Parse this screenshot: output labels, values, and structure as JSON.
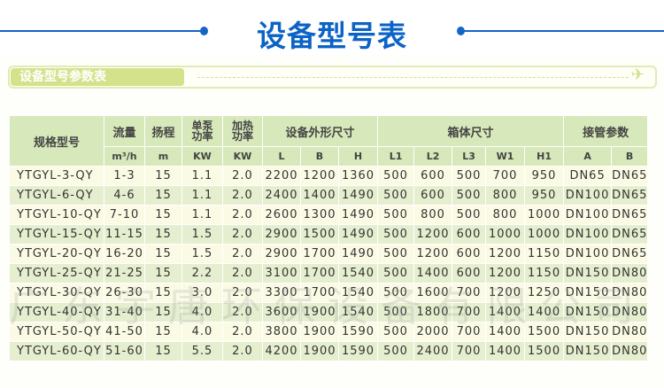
{
  "title": "设备型号表",
  "section_label": "设备型号参数表",
  "watermark": "广东宇唐环保设备有限公司",
  "colors": {
    "title": "#0b63c6",
    "header_bg": "#d7e8ba",
    "row_light": "#fbfbe5",
    "row_green": "#e5efcf",
    "section_bar": "#d4e28c"
  },
  "table": {
    "group_headers": {
      "model": "规格型号",
      "flow": "流量",
      "head": "扬程",
      "pump_power": "单泵功率",
      "heat_power": "加热功率",
      "equip_size": "设备外形尺寸",
      "tank_size": "箱体尺寸",
      "pipe": "接管参数"
    },
    "units": [
      "m³/h",
      "m",
      "KW",
      "KW",
      "L",
      "B",
      "H",
      "L1",
      "L2",
      "L3",
      "W1",
      "H1",
      "A",
      "B"
    ],
    "rows": [
      [
        "YTGYL-3-QY",
        "1-3",
        "15",
        "1.1",
        "2.0",
        "2200",
        "1200",
        "1360",
        "500",
        "600",
        "500",
        "700",
        "950",
        "DN65",
        "DN65"
      ],
      [
        "YTGYL-6-QY",
        "4-6",
        "15",
        "1.1",
        "2.0",
        "2400",
        "1400",
        "1490",
        "500",
        "600",
        "500",
        "800",
        "950",
        "DN100",
        "DN65"
      ],
      [
        "YTGYL-10-QY",
        "7-10",
        "15",
        "1.1",
        "2.0",
        "2600",
        "1300",
        "1490",
        "500",
        "800",
        "500",
        "800",
        "1000",
        "DN100",
        "DN65"
      ],
      [
        "YTGYL-15-QY",
        "11-15",
        "15",
        "1.5",
        "2.0",
        "2900",
        "1500",
        "1490",
        "500",
        "1200",
        "600",
        "1000",
        "1000",
        "DN100",
        "DN65"
      ],
      [
        "YTGYL-20-QY",
        "16-20",
        "15",
        "1.5",
        "2.0",
        "2900",
        "1700",
        "1490",
        "500",
        "1200",
        "600",
        "1200",
        "1150",
        "DN100",
        "DN65"
      ],
      [
        "YTGYL-25-QY",
        "21-25",
        "15",
        "2.2",
        "2.0",
        "3100",
        "1700",
        "1540",
        "500",
        "1400",
        "600",
        "1200",
        "1150",
        "DN150",
        "DN80"
      ],
      [
        "YTGYL-30-QY",
        "26-30",
        "15",
        "3.0",
        "2.0",
        "3300",
        "1700",
        "1540",
        "500",
        "1600",
        "700",
        "1200",
        "1250",
        "DN150",
        "DN80"
      ],
      [
        "YTGYL-40-QY",
        "31-40",
        "15",
        "4.0",
        "2.0",
        "3600",
        "1900",
        "1540",
        "500",
        "1800",
        "700",
        "1400",
        "1400",
        "DN150",
        "DN80"
      ],
      [
        "YTGYL-50-QY",
        "41-50",
        "15",
        "4.0",
        "2.0",
        "3800",
        "1900",
        "1590",
        "500",
        "2000",
        "700",
        "1400",
        "1500",
        "DN150",
        "DN80"
      ],
      [
        "YTGYL-60-QY",
        "51-60",
        "15",
        "5.5",
        "2.0",
        "4200",
        "1900",
        "1590",
        "500",
        "2400",
        "700",
        "1400",
        "1500",
        "DN150",
        "DN80"
      ]
    ]
  }
}
